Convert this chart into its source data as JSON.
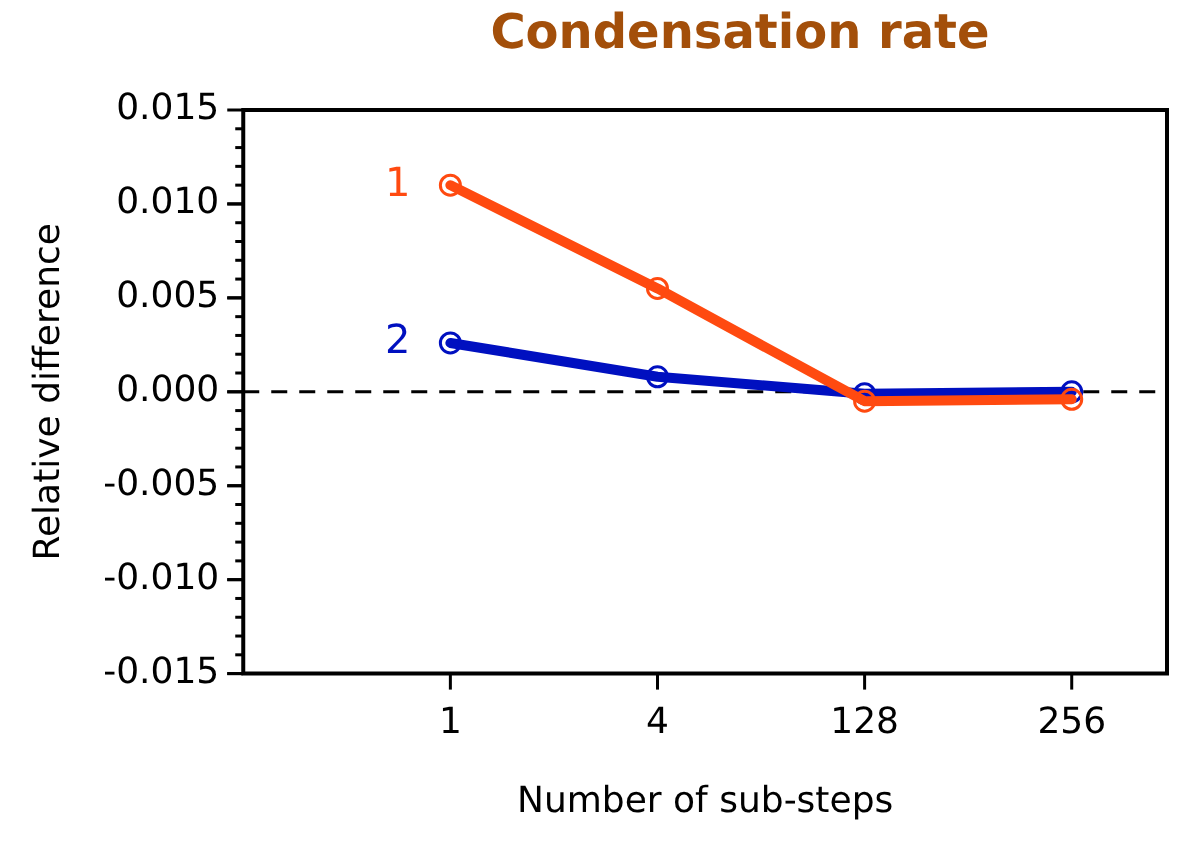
{
  "chart_data": {
    "type": "line",
    "title": "Condensation rate",
    "xlabel": "Number of sub-steps",
    "ylabel": "Relative difference",
    "categories": [
      "1",
      "4",
      "128",
      "256"
    ],
    "series": [
      {
        "name": "1",
        "color": "#ff4a10",
        "values": [
          0.011,
          0.0055,
          -0.0005,
          -0.0004
        ]
      },
      {
        "name": "2",
        "color": "#0010c0",
        "values": [
          0.0026,
          0.0008,
          -0.0001,
          0.0
        ]
      }
    ],
    "ylim": [
      -0.015,
      0.015
    ],
    "yticks": [
      {
        "value": 0.015,
        "label": "0.015"
      },
      {
        "value": 0.01,
        "label": "0.010"
      },
      {
        "value": 0.005,
        "label": "0.005"
      },
      {
        "value": 0,
        "label": "0.000"
      },
      {
        "value": -0.005,
        "label": "-0.005"
      },
      {
        "value": -0.01,
        "label": "-0.010"
      },
      {
        "value": -0.015,
        "label": "-0.015"
      }
    ],
    "ref_lines": [
      {
        "axis": "y",
        "value": 0,
        "color": "#000000",
        "line_style": "dashed"
      }
    ],
    "marker": "circle",
    "line_style": "solid",
    "grid": false,
    "legend": false
  }
}
